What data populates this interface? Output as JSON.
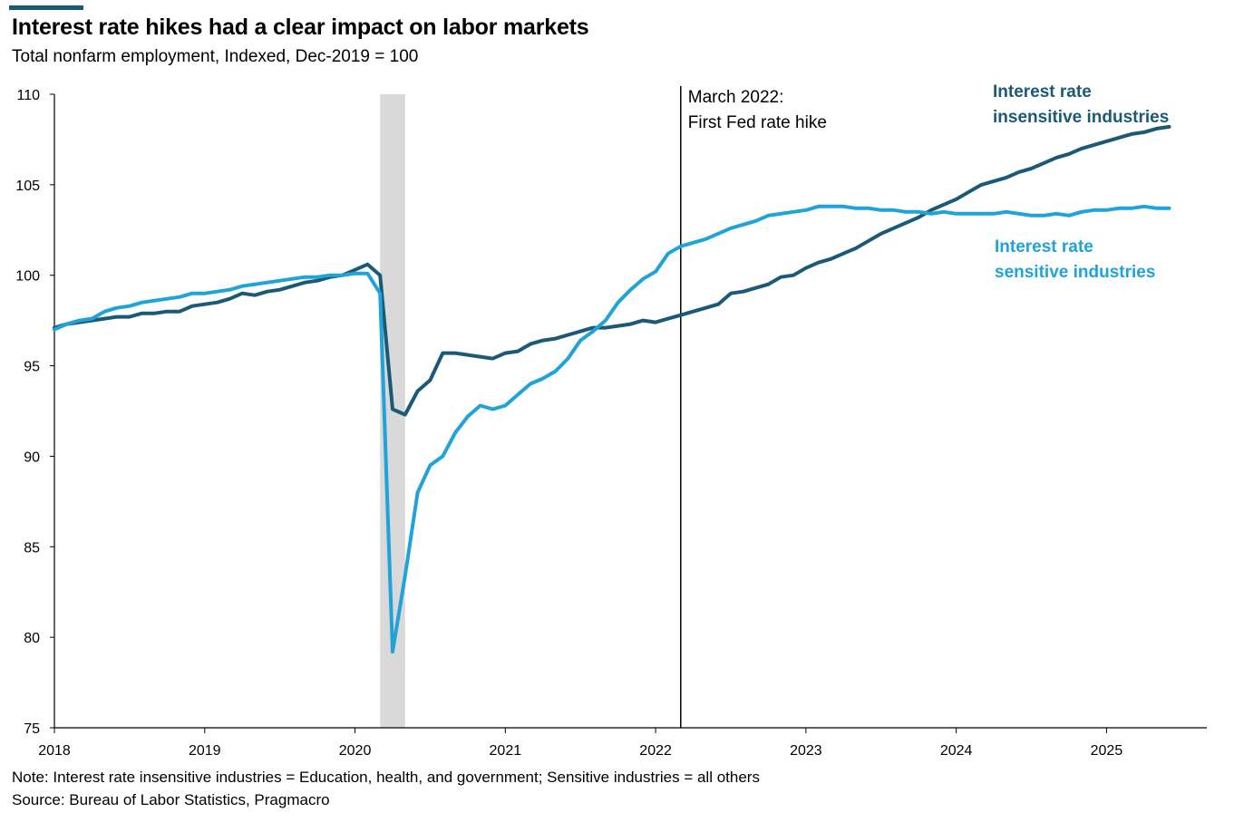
{
  "title": "Interest rate hikes had a clear impact on labor markets",
  "subtitle": "Total nonfarm employment, Indexed, Dec-2019 = 100",
  "notes": {
    "note": "Note: Interest rate insensitive industries = Education, health, and government; Sensitive industries = all others",
    "source": "Source: Bureau of Labor Statistics, Pragmacro"
  },
  "colors": {
    "insensitive": "#1b5a77",
    "sensitive": "#1fa3d8",
    "recession": "#d9d9d9",
    "accent": "#1b5a77"
  },
  "chart_data": {
    "type": "line",
    "title": "Interest rate hikes had a clear impact on labor markets",
    "subtitle": "Total nonfarm employment, Indexed, Dec-2019 = 100",
    "xlabel": "",
    "ylabel": "",
    "ylim": [
      75,
      110
    ],
    "xlim": [
      2018.0,
      2025.667
    ],
    "yticks": [
      75,
      80,
      85,
      90,
      95,
      100,
      105,
      110
    ],
    "xticks": [
      2018,
      2019,
      2020,
      2021,
      2022,
      2023,
      2024,
      2025
    ],
    "xtick_labels": [
      "2018",
      "2019",
      "2020",
      "2021",
      "2022",
      "2023",
      "2024",
      "2025"
    ],
    "recession_shading": [
      2020.167,
      2020.333
    ],
    "vline": {
      "x": 2022.167,
      "label_line1": "March 2022:",
      "label_line2": "First Fed rate hike"
    },
    "series": [
      {
        "name": "Interest rate insensitive industries",
        "label_line1": "Interest rate",
        "label_line2": "insensitive industries",
        "color_key": "insensitive",
        "start": 2018.0,
        "step": 0.0833333,
        "values": [
          97.1,
          97.3,
          97.4,
          97.5,
          97.6,
          97.7,
          97.7,
          97.9,
          97.9,
          98.0,
          98.0,
          98.3,
          98.4,
          98.5,
          98.7,
          99.0,
          98.9,
          99.1,
          99.2,
          99.4,
          99.6,
          99.7,
          99.9,
          100.0,
          100.3,
          100.6,
          100.0,
          92.6,
          92.3,
          93.6,
          94.2,
          95.7,
          95.7,
          95.6,
          95.5,
          95.4,
          95.7,
          95.8,
          96.2,
          96.4,
          96.5,
          96.7,
          96.9,
          97.1,
          97.1,
          97.2,
          97.3,
          97.5,
          97.4,
          97.6,
          97.8,
          98.0,
          98.2,
          98.4,
          99.0,
          99.1,
          99.3,
          99.5,
          99.9,
          100.0,
          100.4,
          100.7,
          100.9,
          101.2,
          101.5,
          101.9,
          102.3,
          102.6,
          102.9,
          103.2,
          103.6,
          103.9,
          104.2,
          104.6,
          105.0,
          105.2,
          105.4,
          105.7,
          105.9,
          106.2,
          106.5,
          106.7,
          107.0,
          107.2,
          107.4,
          107.6,
          107.8,
          107.9,
          108.1,
          108.2
        ]
      },
      {
        "name": "Interest rate sensitive industries",
        "label_line1": "Interest rate",
        "label_line2": "sensitive industries",
        "color_key": "sensitive",
        "start": 2018.0,
        "step": 0.0833333,
        "values": [
          97.0,
          97.3,
          97.5,
          97.6,
          98.0,
          98.2,
          98.3,
          98.5,
          98.6,
          98.7,
          98.8,
          99.0,
          99.0,
          99.1,
          99.2,
          99.4,
          99.5,
          99.6,
          99.7,
          99.8,
          99.9,
          99.9,
          100.0,
          100.0,
          100.1,
          100.1,
          99.0,
          79.2,
          83.4,
          88.0,
          89.5,
          90.0,
          91.3,
          92.2,
          92.8,
          92.6,
          92.8,
          93.4,
          94.0,
          94.3,
          94.7,
          95.4,
          96.4,
          96.9,
          97.5,
          98.5,
          99.2,
          99.8,
          100.2,
          101.2,
          101.6,
          101.8,
          102.0,
          102.3,
          102.6,
          102.8,
          103.0,
          103.3,
          103.4,
          103.5,
          103.6,
          103.8,
          103.8,
          103.8,
          103.7,
          103.7,
          103.6,
          103.6,
          103.5,
          103.5,
          103.4,
          103.5,
          103.4,
          103.4,
          103.4,
          103.4,
          103.5,
          103.4,
          103.3,
          103.3,
          103.4,
          103.3,
          103.5,
          103.6,
          103.6,
          103.7,
          103.7,
          103.8,
          103.7,
          103.7
        ]
      }
    ]
  }
}
